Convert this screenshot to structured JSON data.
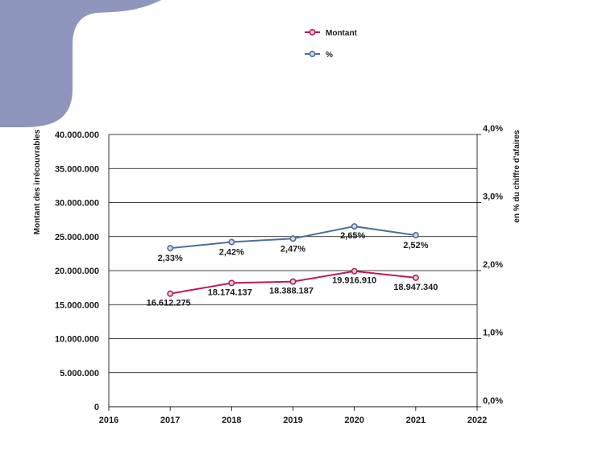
{
  "colors": {
    "decor": "#8e96bd",
    "montant": "#c0185a",
    "percent": "#4e6e9c",
    "grid": "#000000",
    "marker_fill": "#d7d7d7"
  },
  "legend": [
    {
      "name": "Montant",
      "series": "montant"
    },
    {
      "name": "%",
      "series": "percent"
    }
  ],
  "chart_data": {
    "type": "line",
    "title": "",
    "xlabel": "",
    "ylabel_left": "Montant des irrécouvrables",
    "ylabel_right": "en % du chiffre d'afaires",
    "xlim": [
      2016,
      2022
    ],
    "x_ticks": [
      "2016",
      "2017",
      "2018",
      "2019",
      "2020",
      "2021",
      "2022"
    ],
    "ylim_left": [
      0,
      40000000
    ],
    "y_ticks_left": [
      {
        "value": 0,
        "label": "0"
      },
      {
        "value": 5000000,
        "label": "5.000.000"
      },
      {
        "value": 10000000,
        "label": "10.000.000"
      },
      {
        "value": 15000000,
        "label": "15.000.000"
      },
      {
        "value": 20000000,
        "label": "20.000.000"
      },
      {
        "value": 25000000,
        "label": "25.000.000"
      },
      {
        "value": 30000000,
        "label": "30.000.000"
      },
      {
        "value": 35000000,
        "label": "35.000.000"
      },
      {
        "value": 40000000,
        "label": "40.000.000"
      }
    ],
    "ylim_right": [
      0,
      4
    ],
    "y_ticks_right": [
      {
        "value": 0,
        "label": "0,0%"
      },
      {
        "value": 1,
        "label": "1,0%"
      },
      {
        "value": 2,
        "label": "2,0%"
      },
      {
        "value": 3,
        "label": "3,0%"
      },
      {
        "value": 4,
        "label": "4,0%"
      }
    ],
    "grid": true,
    "legend_position": "top-center",
    "series": [
      {
        "name": "Montant",
        "axis": "left",
        "x": [
          2017,
          2018,
          2019,
          2020,
          2021
        ],
        "values": [
          16612275,
          18174137,
          18388187,
          19916910,
          18947340
        ],
        "labels": [
          "16.612.275",
          "18.174.137",
          "18.388.187",
          "19.916.910",
          "18.947.340"
        ]
      },
      {
        "name": "%",
        "axis": "right",
        "x": [
          2017,
          2018,
          2019,
          2020,
          2021
        ],
        "values": [
          2.33,
          2.42,
          2.47,
          2.65,
          2.52
        ],
        "labels": [
          "2,33%",
          "2,42%",
          "2,47%",
          "2,65%",
          "2,52%"
        ]
      }
    ]
  }
}
